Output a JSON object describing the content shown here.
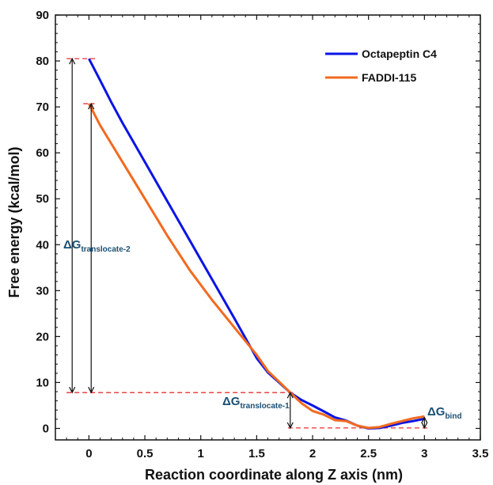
{
  "chart_data": {
    "type": "line",
    "title": "",
    "xlabel": "Reaction coordinate along Z axis (nm)",
    "ylabel": "Free energy (kcal/mol)",
    "xlim": [
      -0.3,
      3.5
    ],
    "ylim": [
      -2.5,
      90
    ],
    "x_ticks": [
      "0",
      "0.5",
      "1",
      "1.5",
      "2",
      "2.5",
      "3",
      "3.5"
    ],
    "y_ticks": [
      "0",
      "10",
      "20",
      "30",
      "40",
      "50",
      "60",
      "70",
      "80",
      "90"
    ],
    "grid": false,
    "legend_position": "top-right",
    "series": [
      {
        "name": "Octapeptin C4",
        "color": "#0a14e6",
        "x": [
          0.0,
          0.1,
          0.2,
          0.3,
          0.5,
          0.7,
          0.9,
          1.1,
          1.3,
          1.5,
          1.6,
          1.7,
          1.8,
          1.9,
          2.0,
          2.1,
          2.2,
          2.3,
          2.4,
          2.5,
          2.6,
          2.7,
          2.8,
          2.9,
          3.0
        ],
        "y": [
          80.5,
          75.8,
          71.0,
          66.5,
          58.0,
          49.5,
          41.0,
          32.5,
          24.0,
          15.3,
          12.2,
          10.0,
          7.8,
          6.2,
          5.0,
          3.7,
          2.4,
          1.7,
          0.6,
          0.0,
          0.1,
          0.6,
          1.2,
          1.6,
          2.1
        ]
      },
      {
        "name": "FADDI-115",
        "color": "#f26a1f",
        "x": [
          0.0,
          0.1,
          0.2,
          0.3,
          0.5,
          0.7,
          0.9,
          1.1,
          1.3,
          1.5,
          1.6,
          1.7,
          1.8,
          1.9,
          2.0,
          2.1,
          2.2,
          2.3,
          2.4,
          2.5,
          2.6,
          2.7,
          2.8,
          2.9,
          3.0
        ],
        "y": [
          70.7,
          66.0,
          62.0,
          58.0,
          50.0,
          42.0,
          34.5,
          28.0,
          22.0,
          16.0,
          12.5,
          10.2,
          7.8,
          5.5,
          3.8,
          3.0,
          1.8,
          1.6,
          0.6,
          0.1,
          0.3,
          1.0,
          1.6,
          2.2,
          2.6
        ]
      }
    ],
    "annotations": [
      {
        "label_main": "ΔG",
        "label_sub": "translocate-2",
        "from": 7.8,
        "to": 80.5,
        "x": -0.15
      },
      {
        "label_main": "ΔG",
        "label_sub": "translocate-1",
        "from": 0.1,
        "to": 7.8,
        "x": 1.8
      },
      {
        "label_main": "ΔG",
        "label_sub": "bind",
        "from": 0.1,
        "to": 2.4,
        "x": 3.0
      }
    ],
    "annotation_color": "#1b4f72",
    "reference_line_color": "#e53030",
    "arrow_color": "#111111"
  }
}
